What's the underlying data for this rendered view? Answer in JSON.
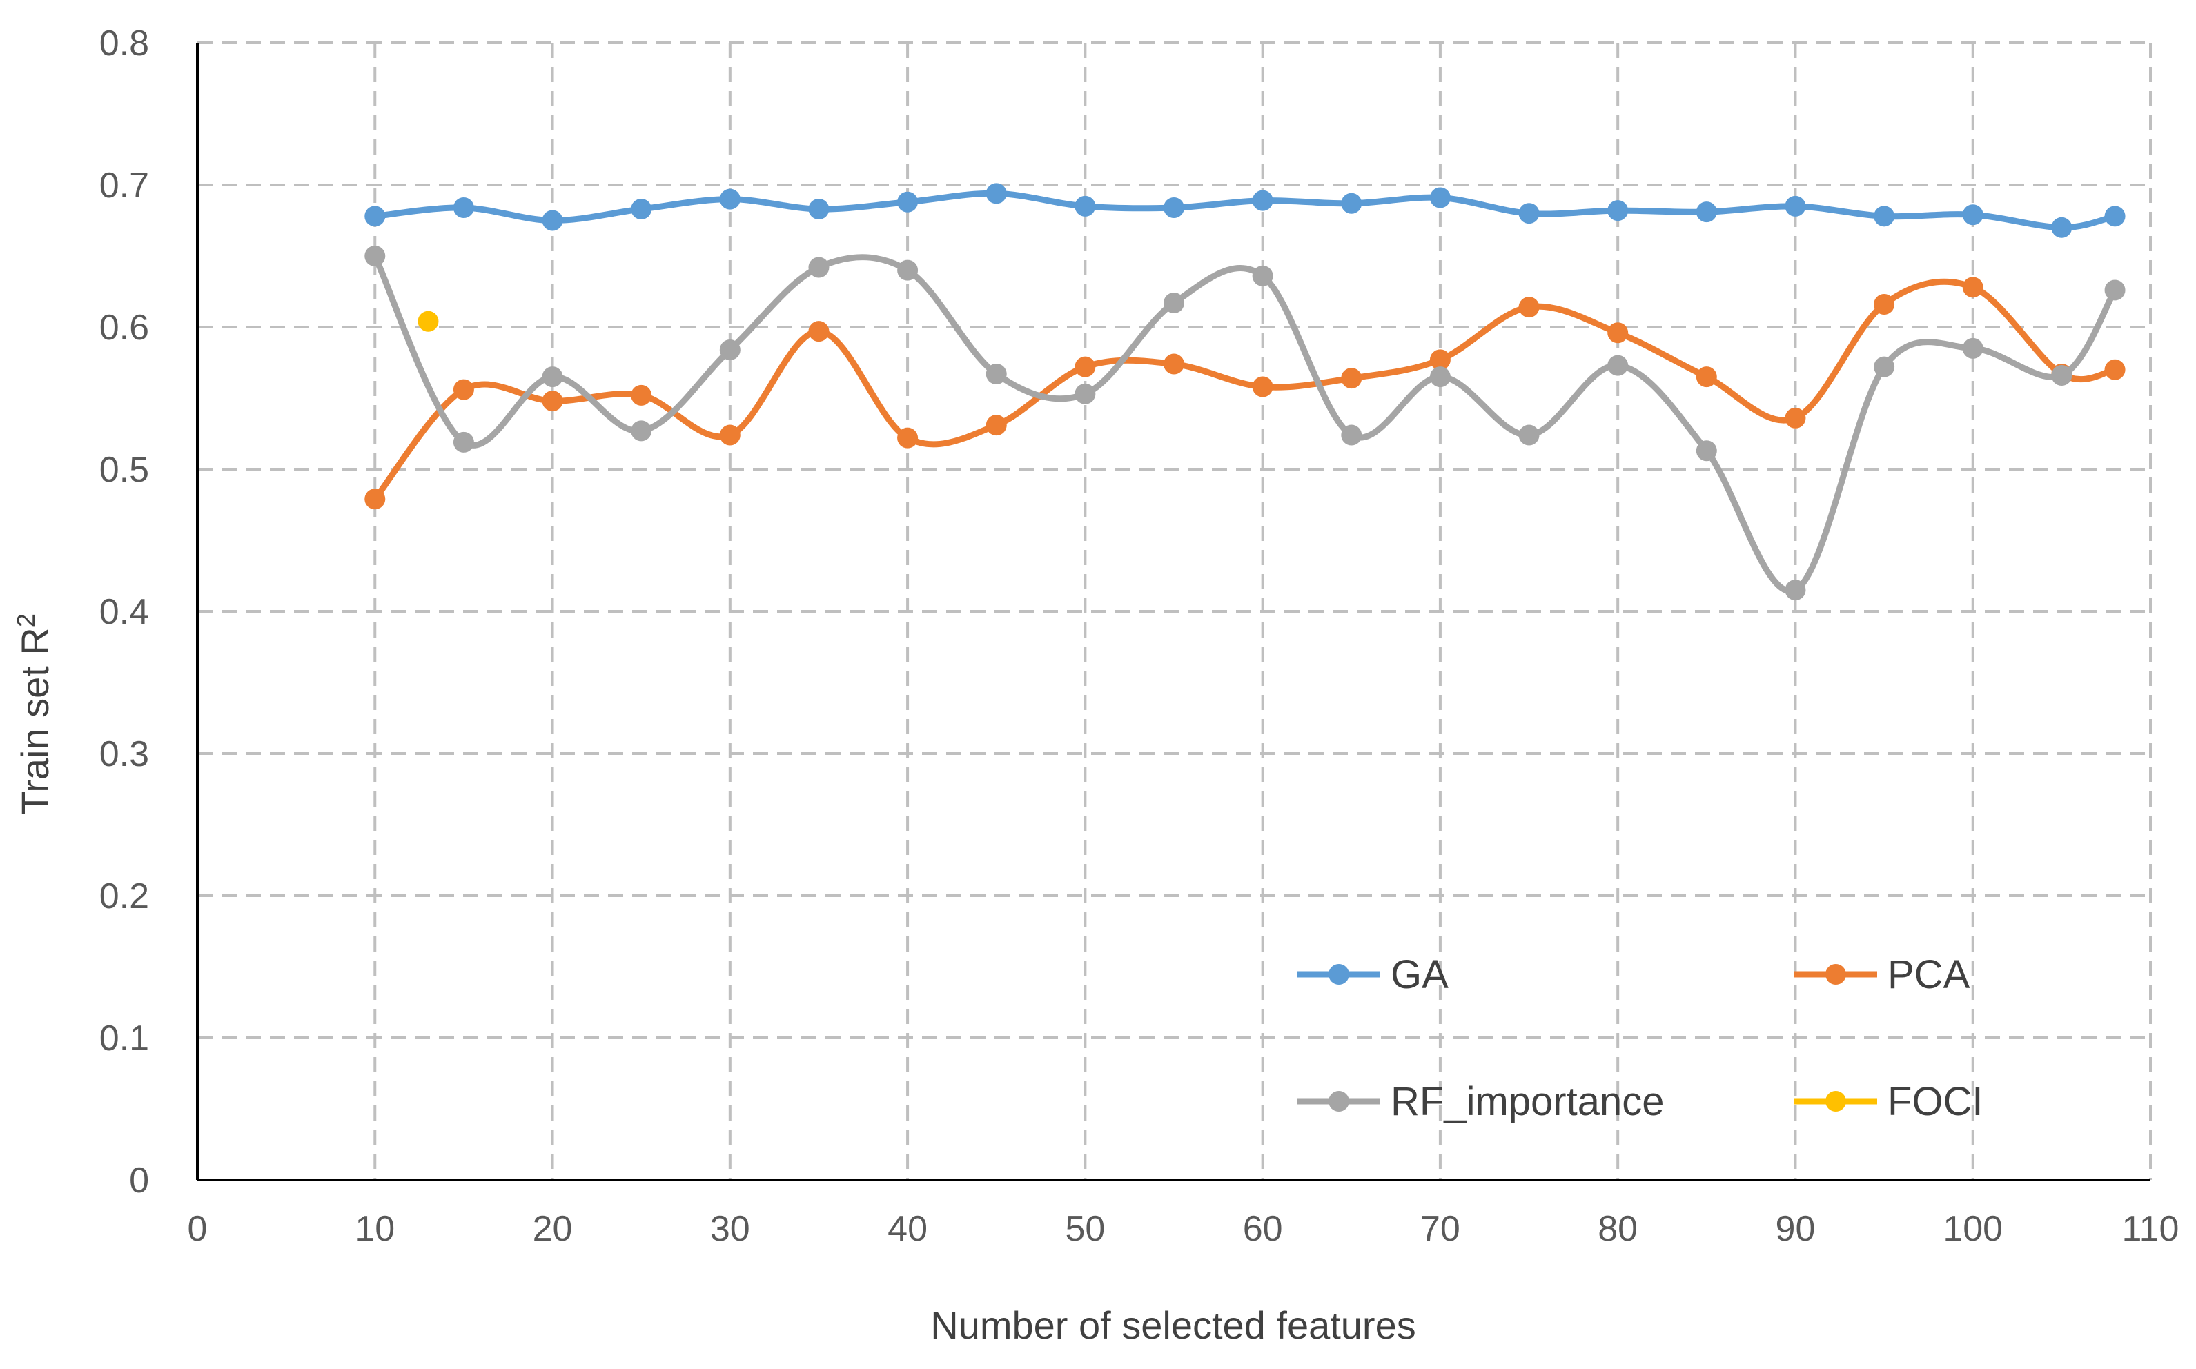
{
  "chart_data": {
    "type": "line",
    "title": "",
    "xlabel": "Number of selected features",
    "ylabel": "Train set R",
    "ylabel_sup": "2",
    "xlim": [
      0,
      110
    ],
    "ylim": [
      0,
      0.8
    ],
    "x_ticks": [
      0,
      10,
      20,
      30,
      40,
      50,
      60,
      70,
      80,
      90,
      100,
      110
    ],
    "y_ticks": [
      0,
      0.1,
      0.2,
      0.3,
      0.4,
      0.5,
      0.6,
      0.7,
      0.8
    ],
    "x_tick_labels": [
      "0",
      "10",
      "20",
      "30",
      "40",
      "50",
      "60",
      "70",
      "80",
      "90",
      "100",
      "110"
    ],
    "y_tick_labels": [
      "0",
      "0.1",
      "0.2",
      "0.3",
      "0.4",
      "0.5",
      "0.6",
      "0.7",
      "0.8"
    ],
    "grid": true,
    "legend_position": "bottom-right",
    "series": [
      {
        "name": "GA",
        "color": "#5b9bd5",
        "x": [
          10,
          15,
          20,
          25,
          30,
          35,
          40,
          45,
          50,
          55,
          60,
          65,
          70,
          75,
          80,
          85,
          90,
          95,
          100,
          105,
          108
        ],
        "y": [
          0.678,
          0.684,
          0.675,
          0.683,
          0.69,
          0.683,
          0.688,
          0.694,
          0.685,
          0.684,
          0.689,
          0.687,
          0.691,
          0.68,
          0.682,
          0.681,
          0.685,
          0.678,
          0.679,
          0.67,
          0.678
        ]
      },
      {
        "name": "PCA",
        "color": "#ed7d31",
        "x": [
          10,
          15,
          20,
          25,
          30,
          35,
          40,
          45,
          50,
          55,
          60,
          65,
          70,
          75,
          80,
          85,
          90,
          95,
          100,
          105,
          108
        ],
        "y": [
          0.479,
          0.556,
          0.548,
          0.552,
          0.524,
          0.597,
          0.522,
          0.531,
          0.572,
          0.574,
          0.558,
          0.564,
          0.577,
          0.614,
          0.596,
          0.565,
          0.536,
          0.616,
          0.628,
          0.567,
          0.57
        ]
      },
      {
        "name": "RF_importance",
        "color": "#a5a5a5",
        "x": [
          10,
          15,
          20,
          25,
          30,
          35,
          40,
          45,
          50,
          55,
          60,
          65,
          70,
          75,
          80,
          85,
          90,
          95,
          100,
          105,
          108
        ],
        "y": [
          0.65,
          0.519,
          0.565,
          0.527,
          0.584,
          0.642,
          0.64,
          0.567,
          0.553,
          0.617,
          0.636,
          0.524,
          0.565,
          0.524,
          0.573,
          0.513,
          0.415,
          0.572,
          0.585,
          0.566,
          0.626
        ]
      },
      {
        "name": "FOCI",
        "color": "#ffc000",
        "x": [
          13
        ],
        "y": [
          0.604
        ]
      }
    ]
  }
}
